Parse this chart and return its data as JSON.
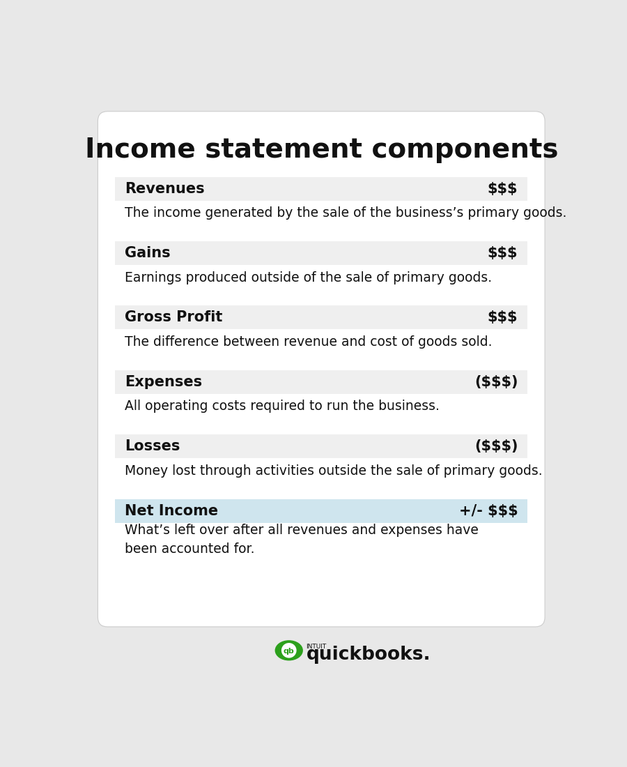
{
  "title": "Income statement components",
  "title_fontsize": 28,
  "background_color": "#e8e8e8",
  "card_bg": "#ffffff",
  "items": [
    {
      "label": "Revenues",
      "value": "$$$",
      "description": "The income generated by the sale of the business’s primary goods.",
      "header_bg": "#efefef",
      "is_special": false
    },
    {
      "label": "Gains",
      "value": "$$$",
      "description": "Earnings produced outside of the sale of primary goods.",
      "header_bg": "#efefef",
      "is_special": false
    },
    {
      "label": "Gross Profit",
      "value": "$$$",
      "description": "The difference between revenue and cost of goods sold.",
      "header_bg": "#efefef",
      "is_special": false
    },
    {
      "label": "Expenses",
      "value": "($$$)",
      "description": "All operating costs required to run the business.",
      "header_bg": "#efefef",
      "is_special": false
    },
    {
      "label": "Losses",
      "value": "($$$)",
      "description": "Money lost through activities outside the sale of primary goods.",
      "header_bg": "#efefef",
      "is_special": false
    },
    {
      "label": "Net Income",
      "value": "+/- $$$",
      "description": "What’s left over after all revenues and expenses have\nbeen accounted for.",
      "header_bg": "#cfe5ee",
      "is_special": true
    }
  ],
  "header_text_color": "#111111",
  "desc_text_color": "#111111",
  "label_fontsize": 15,
  "value_fontsize": 15,
  "desc_fontsize": 13.5,
  "logo_text": "quickbooks.",
  "logo_intuit": "INTUIT",
  "logo_color": "#2ca01c",
  "logo_text_color": "#111111"
}
